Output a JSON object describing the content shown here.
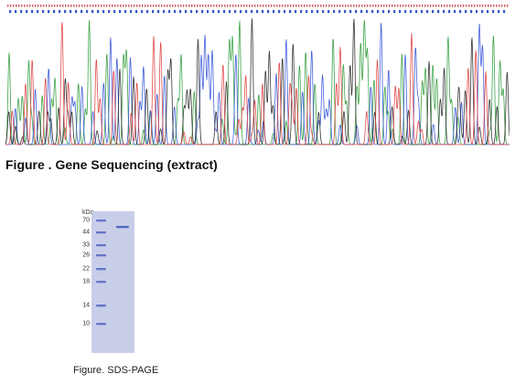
{
  "figure1": {
    "caption": "Figure . Gene Sequencing (extract)",
    "base_colors": {
      "A": "#2a9a35",
      "C": "#3050d8",
      "G": "#222222",
      "T": "#e03a3a"
    },
    "sequence_colors": {
      "top_row": "#cc5555",
      "bottom_row": "#3357c9"
    }
  },
  "figure2": {
    "caption": "Figure. SDS-PAGE",
    "unit_label": "kDa",
    "marker_labels": [
      "70",
      "44",
      "33",
      "26",
      "22",
      "18",
      "14",
      "10"
    ],
    "gel_color": "#c9cee8",
    "band_color": "#5267c0"
  }
}
